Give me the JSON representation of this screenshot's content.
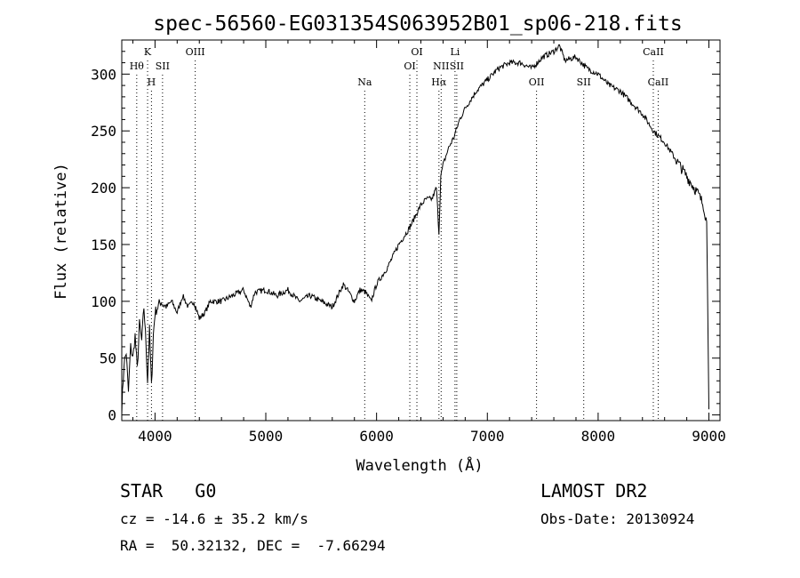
{
  "chart_data": {
    "type": "line",
    "title": "spec-56560-EG031354S063952B01_sp06-218.fits",
    "xlabel": "Wavelength (Å)",
    "ylabel": "Flux (relative)",
    "xlim": [
      3700,
      9100
    ],
    "ylim": [
      -5,
      330
    ],
    "xticks": [
      4000,
      5000,
      6000,
      7000,
      8000,
      9000
    ],
    "yticks": [
      0,
      50,
      100,
      150,
      200,
      250,
      300
    ],
    "grid": false,
    "series": [
      {
        "x": [
          3700,
          3720,
          3740,
          3760,
          3780,
          3800,
          3820,
          3840,
          3860,
          3880,
          3900,
          3920,
          3933,
          3950,
          3968,
          3985,
          4000,
          4050,
          4100,
          4150,
          4200,
          4250,
          4300,
          4350,
          4400,
          4450,
          4500,
          4600,
          4700,
          4800,
          4861,
          4900,
          5000,
          5100,
          5200,
          5300,
          5400,
          5500,
          5600,
          5650,
          5700,
          5750,
          5800,
          5850,
          5900,
          5950,
          6000,
          6100,
          6200,
          6300,
          6400,
          6450,
          6500,
          6540,
          6563,
          6580,
          6600,
          6650,
          6700,
          6750,
          6800,
          6900,
          7000,
          7100,
          7200,
          7300,
          7400,
          7500,
          7600,
          7650,
          7700,
          7800,
          7900,
          8000,
          8100,
          8200,
          8300,
          8400,
          8500,
          8600,
          8700,
          8800,
          8900,
          8950,
          8980,
          9000
        ],
        "y": [
          5,
          45,
          55,
          20,
          60,
          50,
          70,
          40,
          80,
          65,
          95,
          60,
          30,
          75,
          25,
          70,
          90,
          100,
          95,
          100,
          90,
          105,
          95,
          100,
          85,
          90,
          100,
          100,
          105,
          110,
          95,
          108,
          110,
          105,
          110,
          100,
          105,
          100,
          95,
          105,
          115,
          108,
          100,
          110,
          108,
          100,
          115,
          130,
          150,
          165,
          185,
          190,
          190,
          200,
          160,
          210,
          220,
          235,
          245,
          260,
          270,
          285,
          295,
          305,
          310,
          310,
          305,
          315,
          320,
          325,
          312,
          315,
          305,
          300,
          290,
          285,
          275,
          265,
          250,
          240,
          225,
          210,
          195,
          185,
          170,
          5
        ]
      }
    ],
    "line_labels": [
      {
        "wavelength": 3835,
        "label": "Hθ",
        "row": "upper2"
      },
      {
        "wavelength": 3933,
        "label": "K",
        "row": "top"
      },
      {
        "wavelength": 3968,
        "label": "H",
        "row": "low"
      },
      {
        "wavelength": 4068,
        "label": "SII",
        "row": "upper2"
      },
      {
        "wavelength": 4363,
        "label": "OIII",
        "row": "top"
      },
      {
        "wavelength": 5893,
        "label": "Na",
        "row": "low"
      },
      {
        "wavelength": 6300,
        "label": "OI",
        "row": "upper2"
      },
      {
        "wavelength": 6364,
        "label": "OI",
        "row": "top"
      },
      {
        "wavelength": 6563,
        "label": "Hα",
        "row": "low"
      },
      {
        "wavelength": 6583,
        "label": "NII",
        "row": "upper2"
      },
      {
        "wavelength": 6708,
        "label": "Li",
        "row": "top"
      },
      {
        "wavelength": 6724,
        "label": "SII",
        "row": "upper2"
      },
      {
        "wavelength": 7444,
        "label": "OII",
        "row": "low"
      },
      {
        "wavelength": 7870,
        "label": "SII",
        "row": "low"
      },
      {
        "wavelength": 8498,
        "label": "CaII",
        "row": "top"
      },
      {
        "wavelength": 8542,
        "label": "CaII",
        "row": "low"
      }
    ]
  },
  "info": {
    "object_class": "STAR   G0",
    "survey": "LAMOST DR2",
    "velocity": "cz = -14.6 ± 35.2 km/s",
    "obs_date": "Obs-Date: 20130924",
    "coords": "RA =  50.32132, DEC =  -7.66294"
  }
}
